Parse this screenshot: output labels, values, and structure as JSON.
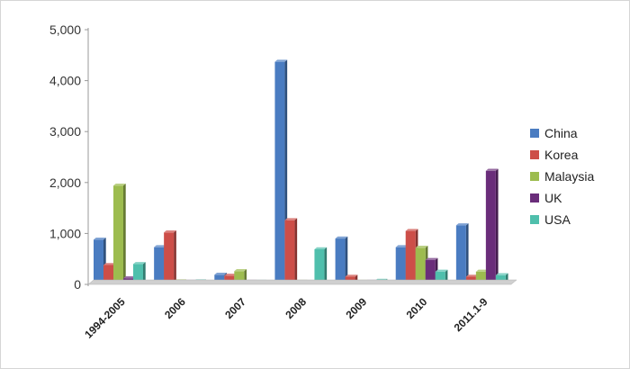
{
  "chart_data": {
    "type": "bar",
    "title": "",
    "xlabel": "",
    "ylabel": "",
    "ylim": [
      0,
      5000
    ],
    "yticks": [
      0,
      1000,
      2000,
      3000,
      4000,
      5000
    ],
    "ytick_labels": [
      "0",
      "1,000",
      "2,000",
      "3,000",
      "4,000",
      "5,000"
    ],
    "grid": false,
    "legend_position": "right",
    "categories": [
      "1994-2005",
      "2006",
      "2007",
      "2008",
      "2009",
      "2010",
      "2011.1-9"
    ],
    "series": [
      {
        "name": "China",
        "color": "#4a7cc1",
        "values": [
          880,
          730,
          190,
          4370,
          900,
          730,
          1160
        ]
      },
      {
        "name": "Korea",
        "color": "#cd4e48",
        "values": [
          380,
          1020,
          170,
          1260,
          150,
          1050,
          150
        ]
      },
      {
        "name": "Malaysia",
        "color": "#9dbc4f",
        "values": [
          1940,
          60,
          260,
          50,
          50,
          720,
          250
        ]
      },
      {
        "name": "UK",
        "color": "#6a2d7a",
        "values": [
          120,
          50,
          50,
          40,
          50,
          480,
          2230
        ]
      },
      {
        "name": "USA",
        "color": "#4fbfac",
        "values": [
          400,
          60,
          50,
          690,
          70,
          250,
          180
        ]
      }
    ]
  }
}
